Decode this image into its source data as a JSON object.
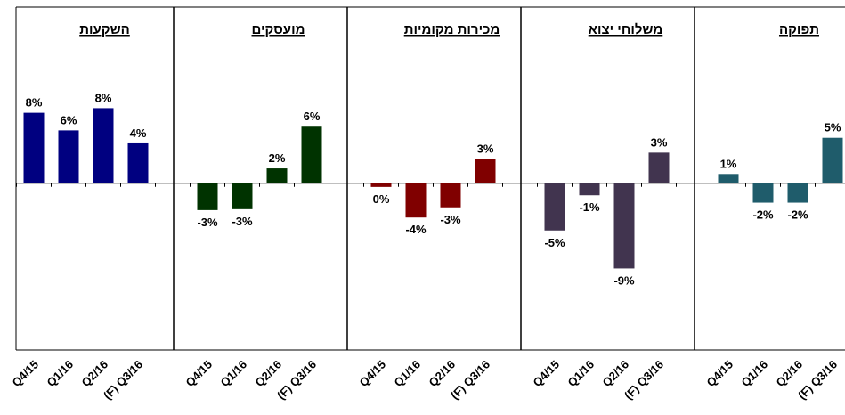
{
  "chart_data": [
    {
      "type": "bar",
      "title": "השקעות",
      "categories": [
        "Q4/15",
        "Q1/16",
        "Q2/16",
        "(F) Q3/16"
      ],
      "values": [
        7.6,
        5.7,
        8.1,
        4.3
      ],
      "value_labels": [
        "8%",
        "6%",
        "8%",
        "4%"
      ],
      "color": "#000080",
      "ylim": [
        -18,
        19
      ]
    },
    {
      "type": "bar",
      "title": "מועסקים",
      "categories": [
        "Q4/15",
        "Q1/16",
        "Q2/16",
        "(F) Q3/16"
      ],
      "values": [
        -2.9,
        -2.8,
        1.6,
        6.1
      ],
      "value_labels": [
        "-3%",
        "-3%",
        "2%",
        "6%"
      ],
      "color": "#003300",
      "ylim": [
        -18,
        19
      ]
    },
    {
      "type": "bar",
      "title": "מכירות מקומיות",
      "categories": [
        "Q4/15",
        "Q1/16",
        "Q2/16",
        "(F) Q3/16"
      ],
      "values": [
        -0.4,
        -3.7,
        -2.6,
        2.6
      ],
      "value_labels": [
        "0%",
        "-4%",
        "-3%",
        "3%"
      ],
      "color": "#800000",
      "ylim": [
        -18,
        19
      ]
    },
    {
      "type": "bar",
      "title": "משלוחי יצוא",
      "categories": [
        "Q4/15",
        "Q1/16",
        "Q2/16",
        "(F) Q3/16"
      ],
      "values": [
        -5.1,
        -1.3,
        -9.2,
        3.3
      ],
      "value_labels": [
        "-5%",
        "-1%",
        "-9%",
        "3%"
      ],
      "color": "#41344f",
      "ylim": [
        -18,
        19
      ]
    },
    {
      "type": "bar",
      "title": "תפוקה",
      "categories": [
        "Q4/15",
        "Q1/16",
        "Q2/16",
        "(F) Q3/16"
      ],
      "values": [
        1.0,
        -2.1,
        -2.1,
        4.9
      ],
      "value_labels": [
        "1%",
        "-2%",
        "-2%",
        "5%"
      ],
      "color": "#1f5c6b",
      "ylim": [
        -18,
        19
      ]
    }
  ]
}
